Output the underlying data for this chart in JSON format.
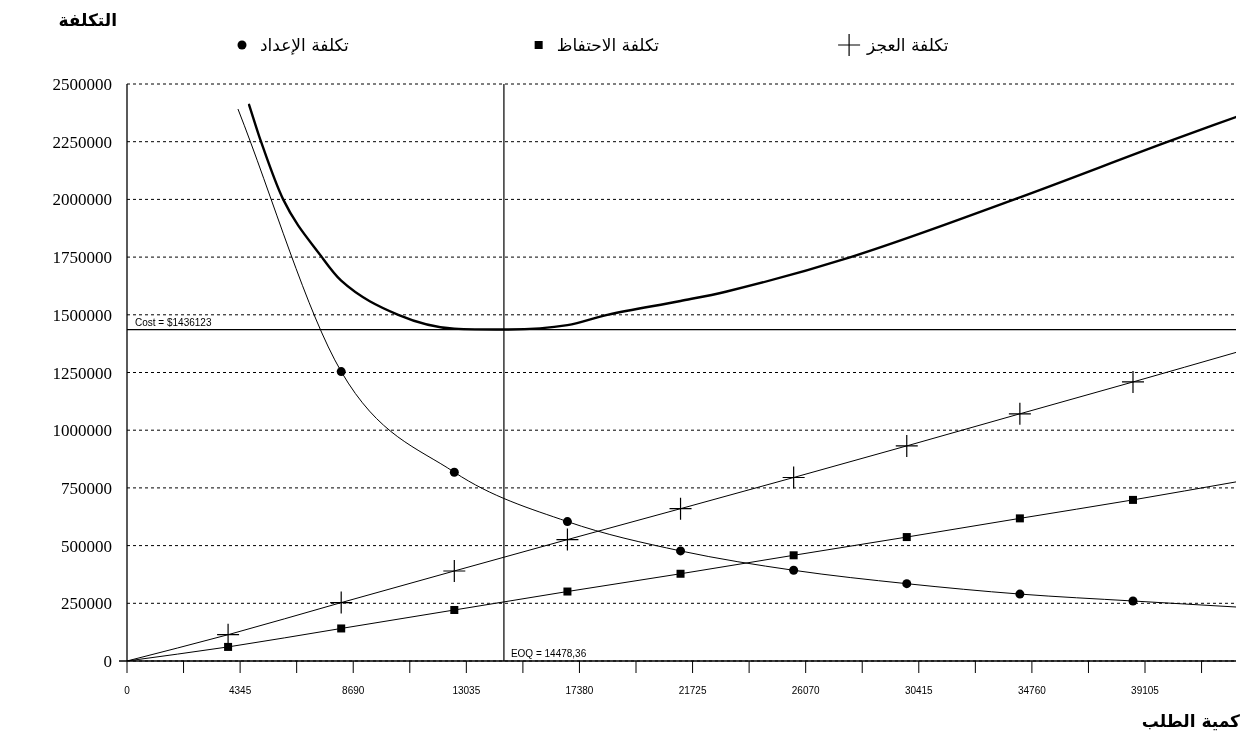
{
  "chart_data": {
    "type": "line",
    "xlabel": "كمية الطلب",
    "ylabel": "التكلفة",
    "xlim": [
      0,
      42600
    ],
    "ylim": [
      0,
      2500000
    ],
    "xticks": [
      0,
      {
        "value": 2172.5,
        "label": null
      },
      4345,
      {
        "value": 6517.5,
        "label": null
      },
      8690,
      {
        "value": 10862.5,
        "label": null
      },
      13035,
      {
        "value": 15207.5,
        "label": null
      },
      17380,
      {
        "value": 19552.5,
        "label": null
      },
      21725,
      {
        "value": 23897.5,
        "label": null
      },
      26070,
      {
        "value": 28242.5,
        "label": null
      },
      30415,
      {
        "value": 32587.5,
        "label": null
      },
      34760,
      {
        "value": 36932.5,
        "label": null
      },
      39105,
      {
        "value": 41277.5,
        "label": null
      }
    ],
    "yticks": [
      0,
      250000,
      500000,
      750000,
      1000000,
      1250000,
      1500000,
      1750000,
      2000000,
      2250000,
      2500000
    ],
    "grid": "y",
    "legend": "top",
    "series": [
      {
        "name": "تكلفة الإعداد",
        "color": "#000000",
        "marker": "circle",
        "x": [
          4268,
          8228,
          12573,
          16918,
          21263,
          25608,
          29953,
          34298,
          38643,
          42600
        ],
        "values": [
          2390000,
          1254000,
          818000,
          604000,
          477000,
          393000,
          335000,
          290000,
          260000,
          234000
        ]
      },
      {
        "name": "تكلفة الاحتفاظ",
        "color": "#000000",
        "marker": "square",
        "x": [
          0,
          3883,
          8228,
          12573,
          16918,
          21263,
          25608,
          29953,
          34298,
          38643,
          42600
        ],
        "values": [
          0,
          61000,
          141000,
          221000,
          301000,
          378000,
          458000,
          537000,
          618000,
          698000,
          776000
        ]
      },
      {
        "name": "تكلفة العجز",
        "color": "#000000",
        "marker": "cross",
        "x": [
          0,
          3883,
          8228,
          12573,
          16918,
          21263,
          25608,
          29953,
          34298,
          38643,
          42600
        ],
        "values": [
          0,
          114000,
          253000,
          390000,
          526000,
          660000,
          795000,
          932000,
          1071000,
          1209000,
          1337000
        ]
      },
      {
        "color": "#000000",
        "marker": "none",
        "x": [
          4690,
          5149,
          5998,
          7485,
          8228,
          10420,
          12573,
          14478,
          16918,
          18450,
          21263,
          23000,
          27800,
          34090,
          39990,
          42600
        ],
        "values": [
          2410000,
          2250000,
          2000000,
          1750000,
          1648000,
          1500000,
          1440000,
          1436000,
          1455000,
          1500000,
          1560000,
          1600000,
          1750000,
          2000000,
          2250000,
          2357000
        ]
      }
    ],
    "ref_lines": [
      {
        "axis": "y",
        "value": 1436123,
        "label": "Cost = $1436123",
        "color": "#000000"
      },
      {
        "axis": "x",
        "value": 14478.36,
        "label": "EOQ = 14478,36",
        "color": "#000000"
      }
    ]
  }
}
